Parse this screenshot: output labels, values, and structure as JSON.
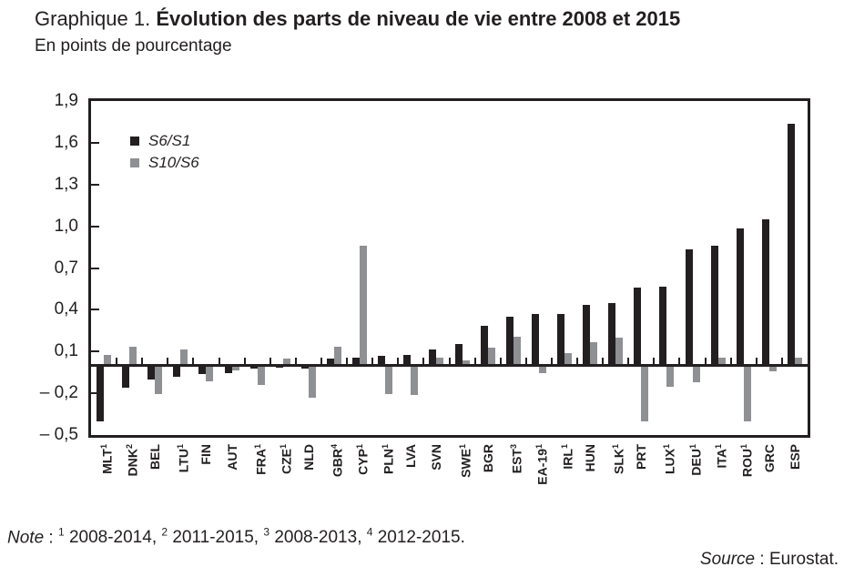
{
  "title": {
    "prefix": "Graphique 1. ",
    "main": "Évolution des parts de niveau de vie entre 2008 et 2015"
  },
  "subtitle": "En points de pourcentage",
  "note": {
    "label": "Note",
    "separator": " : ",
    "items": [
      {
        "sup": "1",
        "range": "2008-2014"
      },
      {
        "sup": "2",
        "range": "2011-2015"
      },
      {
        "sup": "3",
        "range": "2008-2013"
      },
      {
        "sup": "4",
        "range": "2012-2015"
      }
    ]
  },
  "source": {
    "label": "Source",
    "rest": " : Eurostat."
  },
  "chart_data": {
    "type": "bar",
    "title": "Graphique 1. Évolution des parts de niveau de vie entre 2008 et 2015",
    "subtitle": "En points de pourcentage",
    "unit": "points de pourcentage",
    "grid": false,
    "legend_position": "top-left-inside",
    "ylim": [
      -0.5,
      1.9
    ],
    "yticks": [
      1.9,
      1.6,
      1.3,
      1.0,
      0.7,
      0.4,
      0.1,
      -0.2,
      -0.5
    ],
    "ytick_labels": [
      "1,9",
      "1,6",
      "1,3",
      "1,0",
      "0,7",
      "0,4",
      "0,1",
      "– 0,2",
      "– 0,5"
    ],
    "categories": [
      {
        "code": "MLT",
        "sup": "1"
      },
      {
        "code": "DNK",
        "sup": "2"
      },
      {
        "code": "BEL",
        "sup": ""
      },
      {
        "code": "LTU",
        "sup": "1"
      },
      {
        "code": "FIN",
        "sup": ""
      },
      {
        "code": "AUT",
        "sup": ""
      },
      {
        "code": "FRA",
        "sup": "1"
      },
      {
        "code": "CZE",
        "sup": "1"
      },
      {
        "code": "NLD",
        "sup": ""
      },
      {
        "code": "GBR",
        "sup": "4"
      },
      {
        "code": "CYP",
        "sup": "1"
      },
      {
        "code": "PLN",
        "sup": "1"
      },
      {
        "code": "LVA",
        "sup": ""
      },
      {
        "code": "SVN",
        "sup": ""
      },
      {
        "code": "SWE",
        "sup": "1"
      },
      {
        "code": "BGR",
        "sup": ""
      },
      {
        "code": "EST",
        "sup": "3"
      },
      {
        "code": "EA-19",
        "sup": "1"
      },
      {
        "code": "IRL",
        "sup": "1"
      },
      {
        "code": "HUN",
        "sup": ""
      },
      {
        "code": "SLK",
        "sup": "1"
      },
      {
        "code": "PRT",
        "sup": ""
      },
      {
        "code": "LUX",
        "sup": "1"
      },
      {
        "code": "DEU",
        "sup": "1"
      },
      {
        "code": "ITA",
        "sup": "1"
      },
      {
        "code": "ROU",
        "sup": "1"
      },
      {
        "code": "GRC",
        "sup": ""
      },
      {
        "code": "ESP",
        "sup": ""
      }
    ],
    "series": [
      {
        "name": "S6/S1",
        "color": "#231f20",
        "values": [
          -0.4,
          -0.16,
          -0.1,
          -0.08,
          -0.06,
          -0.05,
          -0.02,
          -0.01,
          -0.02,
          0.05,
          0.06,
          0.07,
          0.08,
          0.12,
          0.16,
          0.29,
          0.35,
          0.37,
          0.37,
          0.44,
          0.45,
          0.56,
          0.57,
          0.84,
          0.86,
          0.99,
          1.05,
          1.74
        ]
      },
      {
        "name": "S10/S6",
        "color": "#8e9093",
        "values": [
          0.08,
          0.14,
          -0.2,
          0.12,
          -0.11,
          -0.03,
          -0.14,
          0.05,
          -0.23,
          0.14,
          0.86,
          -0.2,
          -0.21,
          0.06,
          0.04,
          0.13,
          0.21,
          -0.05,
          0.09,
          0.17,
          0.2,
          -0.4,
          -0.15,
          -0.12,
          0.06,
          -0.4,
          -0.04,
          0.06
        ]
      }
    ]
  }
}
